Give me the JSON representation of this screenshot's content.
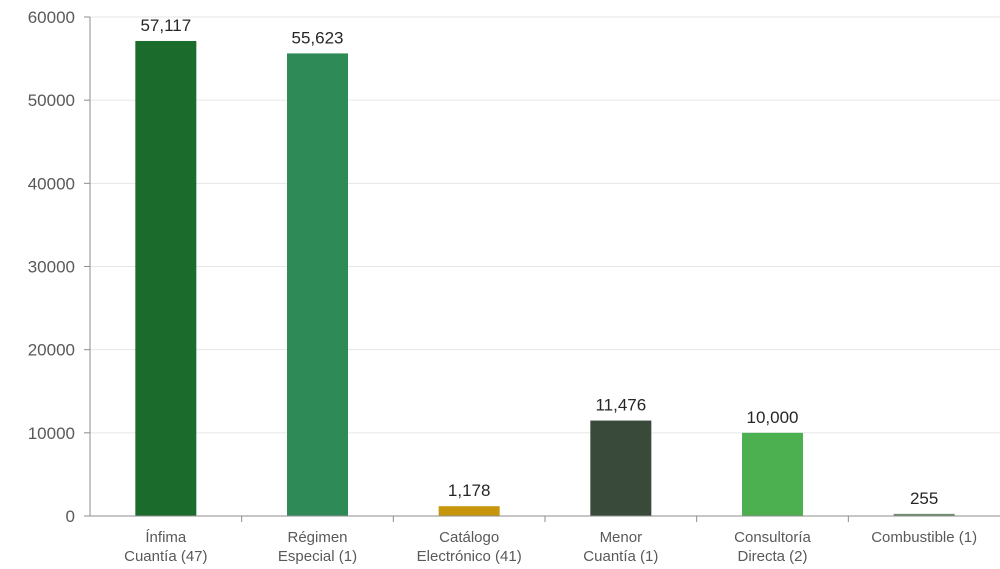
{
  "chart_data": {
    "type": "bar",
    "title": "",
    "xlabel": "",
    "ylabel": "",
    "ylim": [
      0,
      60000
    ],
    "yticks": [
      "0",
      "10000",
      "20000",
      "30000",
      "40000",
      "50000",
      "60000"
    ],
    "grid": true,
    "legend": "none",
    "categories": [
      [
        "Ínfima",
        "Cuantía (47)"
      ],
      [
        "Régimen",
        "Especial (1)"
      ],
      [
        "Catálogo",
        "Electrónico (41)"
      ],
      [
        "Menor",
        "Cuantía (1)"
      ],
      [
        "Consultoría",
        "Directa (2)"
      ],
      [
        "Combustible (1)"
      ]
    ],
    "values": [
      57117,
      55623,
      1178,
      11476,
      10000,
      255
    ],
    "data_labels": [
      "57,117",
      "55,623",
      "1,178",
      "11,476",
      "10,000",
      "255"
    ],
    "colors": [
      "#1b6b2c",
      "#2e8b57",
      "#c8960c",
      "#3a4a3a",
      "#4caf50",
      "#6e8c6e"
    ]
  }
}
